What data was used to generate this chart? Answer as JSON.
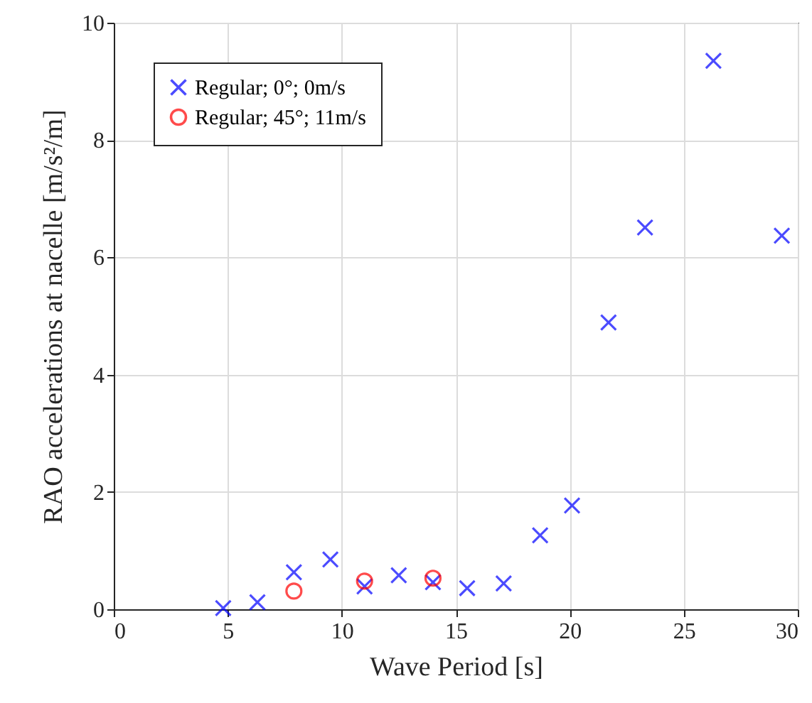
{
  "chart_data": {
    "type": "scatter",
    "xlabel": "Wave Period [s]",
    "ylabel": "RAO accelerations at nacelle [m/s²/m]",
    "xlim": [
      0,
      30
    ],
    "xticks": [
      0,
      5,
      10,
      15,
      20,
      25,
      30
    ],
    "ylim": [
      0,
      10
    ],
    "yticks": [
      0,
      2,
      4,
      6,
      8,
      10
    ],
    "grid": true,
    "legend": "top left",
    "series": [
      {
        "name": "Regular; 0°; 0m/s",
        "color": "#0000ff",
        "marker": "cross",
        "x": [
          4.8,
          6.3,
          7.9,
          9.5,
          11.0,
          12.5,
          14.0,
          15.5,
          17.1,
          18.7,
          20.1,
          21.7,
          23.3,
          26.3,
          29.3
        ],
        "values": [
          0.02,
          0.12,
          0.63,
          0.85,
          0.39,
          0.58,
          0.46,
          0.36,
          0.44,
          1.26,
          1.77,
          4.89,
          6.51,
          9.35,
          6.37
        ]
      },
      {
        "name": "Regular; 45°; 11m/s",
        "color": "#ff0000",
        "marker": "circle",
        "x": [
          7.9,
          11.0,
          14.0
        ],
        "values": [
          0.31,
          0.48,
          0.53
        ]
      }
    ]
  }
}
